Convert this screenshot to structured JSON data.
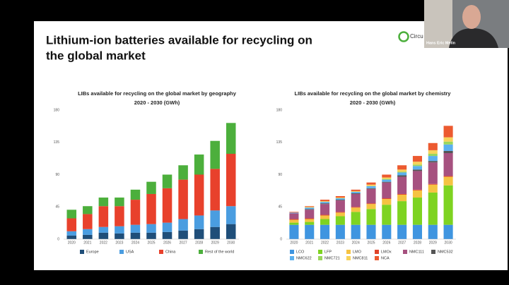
{
  "slide_title": [
    "Lithium-ion batteries available for recycling on",
    "the global market"
  ],
  "logo_text": "Circu",
  "participant_name": "Hans Eric Melin",
  "chart_data": [
    {
      "type": "bar",
      "stacked": true,
      "title": [
        "LIBs available for recycling on the global market by geography",
        "2020 - 2030 (GWh)"
      ],
      "categories": [
        "2020",
        "2021",
        "2022",
        "2023",
        "2024",
        "2025",
        "2026",
        "2027",
        "2028",
        "2029",
        "2030"
      ],
      "series": [
        {
          "name": "Europe",
          "color": "#1f4e79",
          "values": [
            5,
            6,
            9,
            8,
            9,
            9,
            10,
            12,
            14,
            17,
            21
          ]
        },
        {
          "name": "USA",
          "color": "#4a9de0",
          "values": [
            6,
            8,
            8,
            10,
            11,
            12,
            13,
            16,
            19,
            23,
            25
          ]
        },
        {
          "name": "China",
          "color": "#e8412c",
          "values": [
            18,
            21,
            29,
            28,
            35,
            42,
            48,
            55,
            57,
            58,
            73
          ]
        },
        {
          "name": "Rest of the world",
          "color": "#4caf3c",
          "values": [
            12,
            11,
            12,
            12,
            14,
            17,
            19,
            20,
            28,
            39,
            43
          ]
        }
      ],
      "ylim": [
        0,
        180
      ],
      "yticks": [
        0,
        45,
        90,
        135,
        180
      ],
      "grid": false
    },
    {
      "type": "bar",
      "stacked": true,
      "title": [
        "LIBs available for recycling on the global market by chemistry",
        "2020 - 2030 (GWh)"
      ],
      "categories": [
        "2020",
        "2021",
        "2022",
        "2023",
        "2024",
        "2025",
        "2026",
        "2027",
        "2028",
        "2029",
        "2030"
      ],
      "series": [
        {
          "name": "LCO",
          "color": "#3f95e0",
          "values": [
            20,
            20,
            20,
            20,
            20,
            20,
            20,
            20,
            20,
            20,
            20
          ]
        },
        {
          "name": "LFP",
          "color": "#7ed321",
          "values": [
            3,
            4,
            8,
            12,
            18,
            22,
            28,
            33,
            38,
            45,
            55
          ]
        },
        {
          "name": "LMO",
          "color": "#f5c342",
          "values": [
            4,
            4,
            5,
            5,
            6,
            7,
            8,
            9,
            10,
            11,
            12
          ]
        },
        {
          "name": "LMOx",
          "color": "#e0442a",
          "values": [
            1,
            1,
            1,
            1,
            1,
            1,
            1,
            1,
            1,
            1,
            1
          ]
        },
        {
          "name": "NMC111",
          "color": "#a6517f",
          "values": [
            8,
            12,
            15,
            16,
            18,
            20,
            22,
            24,
            26,
            30,
            32
          ]
        },
        {
          "name": "NMC532",
          "color": "#555555",
          "values": [
            0,
            1,
            1,
            1,
            1,
            1,
            1,
            2,
            2,
            2,
            3
          ]
        },
        {
          "name": "NMC622",
          "color": "#5bb0ee",
          "values": [
            1,
            2,
            2,
            2,
            2,
            3,
            3,
            4,
            5,
            7,
            9
          ]
        },
        {
          "name": "NMC721",
          "color": "#9ad65c",
          "values": [
            0,
            0,
            0,
            0,
            0,
            0,
            1,
            1,
            2,
            3,
            4
          ]
        },
        {
          "name": "NMC811",
          "color": "#f7d35a",
          "values": [
            0,
            1,
            1,
            1,
            1,
            2,
            2,
            3,
            4,
            5,
            6
          ]
        },
        {
          "name": "NCA",
          "color": "#ec5a30",
          "values": [
            1,
            1,
            2,
            2,
            2,
            3,
            4,
            6,
            8,
            10,
            16
          ]
        }
      ],
      "ylim": [
        0,
        180
      ],
      "yticks": [
        0,
        45,
        90,
        135,
        180
      ],
      "grid": false
    }
  ]
}
